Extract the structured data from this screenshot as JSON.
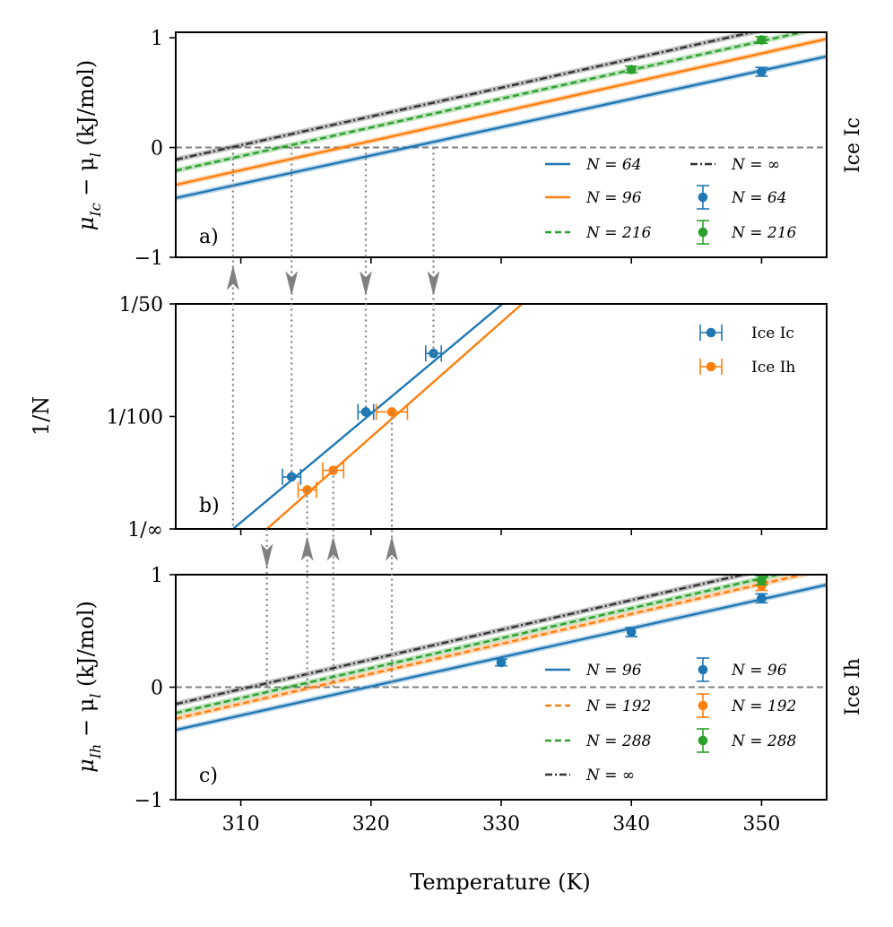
{
  "chart_data": [
    {
      "type": "line",
      "panel_label": "a)",
      "side_label": "Ice Ic",
      "ylabel": "μ_Ic − μ_l (kJ/mol)",
      "ylabel_parts": {
        "mu": "μ",
        "sub1": "Ic",
        "mid": " − μ",
        "sub2": "l",
        "tail": " (kJ/mol)"
      },
      "xlim": [
        305,
        355
      ],
      "ylim": [
        -1,
        1.05
      ],
      "yticks": [
        -1,
        0,
        1
      ],
      "ytick_labels": [
        "−1",
        "0",
        "1"
      ],
      "xticks": [
        310,
        320,
        330,
        340,
        350
      ],
      "zero_line": 0,
      "series": [
        {
          "name": "N = 64",
          "label": "N = 64",
          "color": "#1f77b4",
          "dash": "solid",
          "x": [
            305,
            355
          ],
          "y": [
            -0.46,
            0.83
          ]
        },
        {
          "name": "N = 96",
          "label": "N = 96",
          "color": "#ff7f0e",
          "dash": "solid",
          "x": [
            305,
            355
          ],
          "y": [
            -0.34,
            0.99
          ]
        },
        {
          "name": "N = 216",
          "label": "N = 216",
          "color": "#2ca02c",
          "dash": "dashed",
          "x": [
            305,
            355
          ],
          "y": [
            -0.21,
            1.1
          ]
        },
        {
          "name": "N = ∞",
          "label": "N = ∞",
          "color": "#333333",
          "dash": "dashdot",
          "x": [
            305,
            355
          ],
          "y": [
            -0.11,
            1.2
          ]
        }
      ],
      "points": [
        {
          "name": "N = 64",
          "label": "N = 64",
          "color": "#1f77b4",
          "x": [
            350
          ],
          "y": [
            0.69
          ],
          "yerr": [
            0.04
          ]
        },
        {
          "name": "N = 216",
          "label": "N = 216",
          "color": "#2ca02c",
          "x": [
            340,
            350
          ],
          "y": [
            0.71,
            0.98
          ],
          "yerr": [
            0.03,
            0.03
          ]
        }
      ]
    },
    {
      "type": "scatter",
      "panel_label": "b)",
      "ylabel": "1/N",
      "xlim": [
        305,
        355
      ],
      "ylim": [
        0,
        0.02
      ],
      "yticks": [
        0,
        0.01,
        0.02
      ],
      "ytick_labels": [
        "1/∞",
        "1/100",
        "1/50"
      ],
      "xticks": [
        310,
        320,
        330,
        340,
        350
      ],
      "series": [
        {
          "name": "Ice Ic",
          "label": "Ice Ic",
          "color": "#1f77b4",
          "x": [
            309.4,
            310.5,
            313.5,
            319.8,
            325.2,
            330.1
          ],
          "y": [
            0,
            0.00052,
            0.00463,
            0.0104,
            0.0156,
            0.02
          ],
          "fit": {
            "x": [
              309.4,
              330.1
            ],
            "y": [
              0,
              0.02
            ]
          }
        },
        {
          "name": "Ice Ih",
          "label": "Ice Ih",
          "color": "#ff7f0e",
          "x": [
            312,
            331.6
          ],
          "y": [
            0,
            0.02
          ]
        }
      ],
      "points": [
        {
          "name": "Ice Ic",
          "label": "Ice Ic",
          "color": "#1f77b4",
          "x": [
            313.9,
            319.6,
            324.8
          ],
          "y": [
            0.00463,
            0.0104,
            0.0156
          ],
          "xerr": [
            0.7,
            0.6,
            0.6
          ]
        },
        {
          "name": "Ice Ih",
          "label": "Ice Ih",
          "color": "#ff7f0e",
          "x": [
            315.1,
            317.1,
            321.6
          ],
          "y": [
            0.00347,
            0.00521,
            0.0104
          ],
          "xerr": [
            0.7,
            0.8,
            1.2
          ]
        }
      ]
    },
    {
      "type": "line",
      "panel_label": "c)",
      "side_label": "Ice Ih",
      "ylabel": "μ_Ih − μ_l (kJ/mol)",
      "ylabel_parts": {
        "mu": "μ",
        "sub1": "Ih",
        "mid": " − μ",
        "sub2": "l",
        "tail": " (kJ/mol)"
      },
      "xlabel": "Temperature (K)",
      "xlim": [
        305,
        355
      ],
      "ylim": [
        -1,
        1
      ],
      "yticks": [
        -1,
        0,
        1
      ],
      "ytick_labels": [
        "−1",
        "0",
        "1"
      ],
      "xticks": [
        310,
        320,
        330,
        340,
        350
      ],
      "xtick_labels": [
        "310",
        "320",
        "330",
        "340",
        "350"
      ],
      "zero_line": 0,
      "series": [
        {
          "name": "N = 96",
          "label": "N = 96",
          "color": "#1f77b4",
          "dash": "solid",
          "x": [
            305,
            355
          ],
          "y": [
            -0.38,
            0.91
          ]
        },
        {
          "name": "N = 192",
          "label": "N = 192",
          "color": "#ff7f0e",
          "dash": "dashed",
          "x": [
            305,
            355
          ],
          "y": [
            -0.28,
            1.05
          ]
        },
        {
          "name": "N = 288",
          "label": "N = 288",
          "color": "#2ca02c",
          "dash": "dashed",
          "x": [
            305,
            355
          ],
          "y": [
            -0.23,
            1.1
          ]
        },
        {
          "name": "N = ∞",
          "label": "N = ∞",
          "color": "#333333",
          "dash": "dashdot",
          "x": [
            305,
            355
          ],
          "y": [
            -0.15,
            1.17
          ]
        }
      ],
      "points": [
        {
          "name": "N = 96",
          "label": "N = 96",
          "color": "#1f77b4",
          "x": [
            330,
            340,
            350
          ],
          "y": [
            0.22,
            0.49,
            0.79
          ],
          "yerr": [
            0.03,
            0.04,
            0.04
          ]
        },
        {
          "name": "N = 192",
          "label": "N = 192",
          "color": "#ff7f0e",
          "x": [
            350
          ],
          "y": [
            0.9
          ],
          "yerr": [
            0.04
          ]
        },
        {
          "name": "N = 288",
          "label": "N = 288",
          "color": "#2ca02c",
          "x": [
            350
          ],
          "y": [
            0.95
          ],
          "yerr": [
            0.04
          ]
        }
      ]
    }
  ],
  "crossings": {
    "ice_ic": [
      309.4,
      313.9,
      319.6,
      324.8
    ],
    "ice_ih": [
      312.0,
      315.1,
      317.1,
      321.6
    ]
  },
  "colors": {
    "blue": "#1f77b4",
    "orange": "#ff7f0e",
    "green": "#2ca02c",
    "black": "#333333",
    "grey": "#808080"
  }
}
